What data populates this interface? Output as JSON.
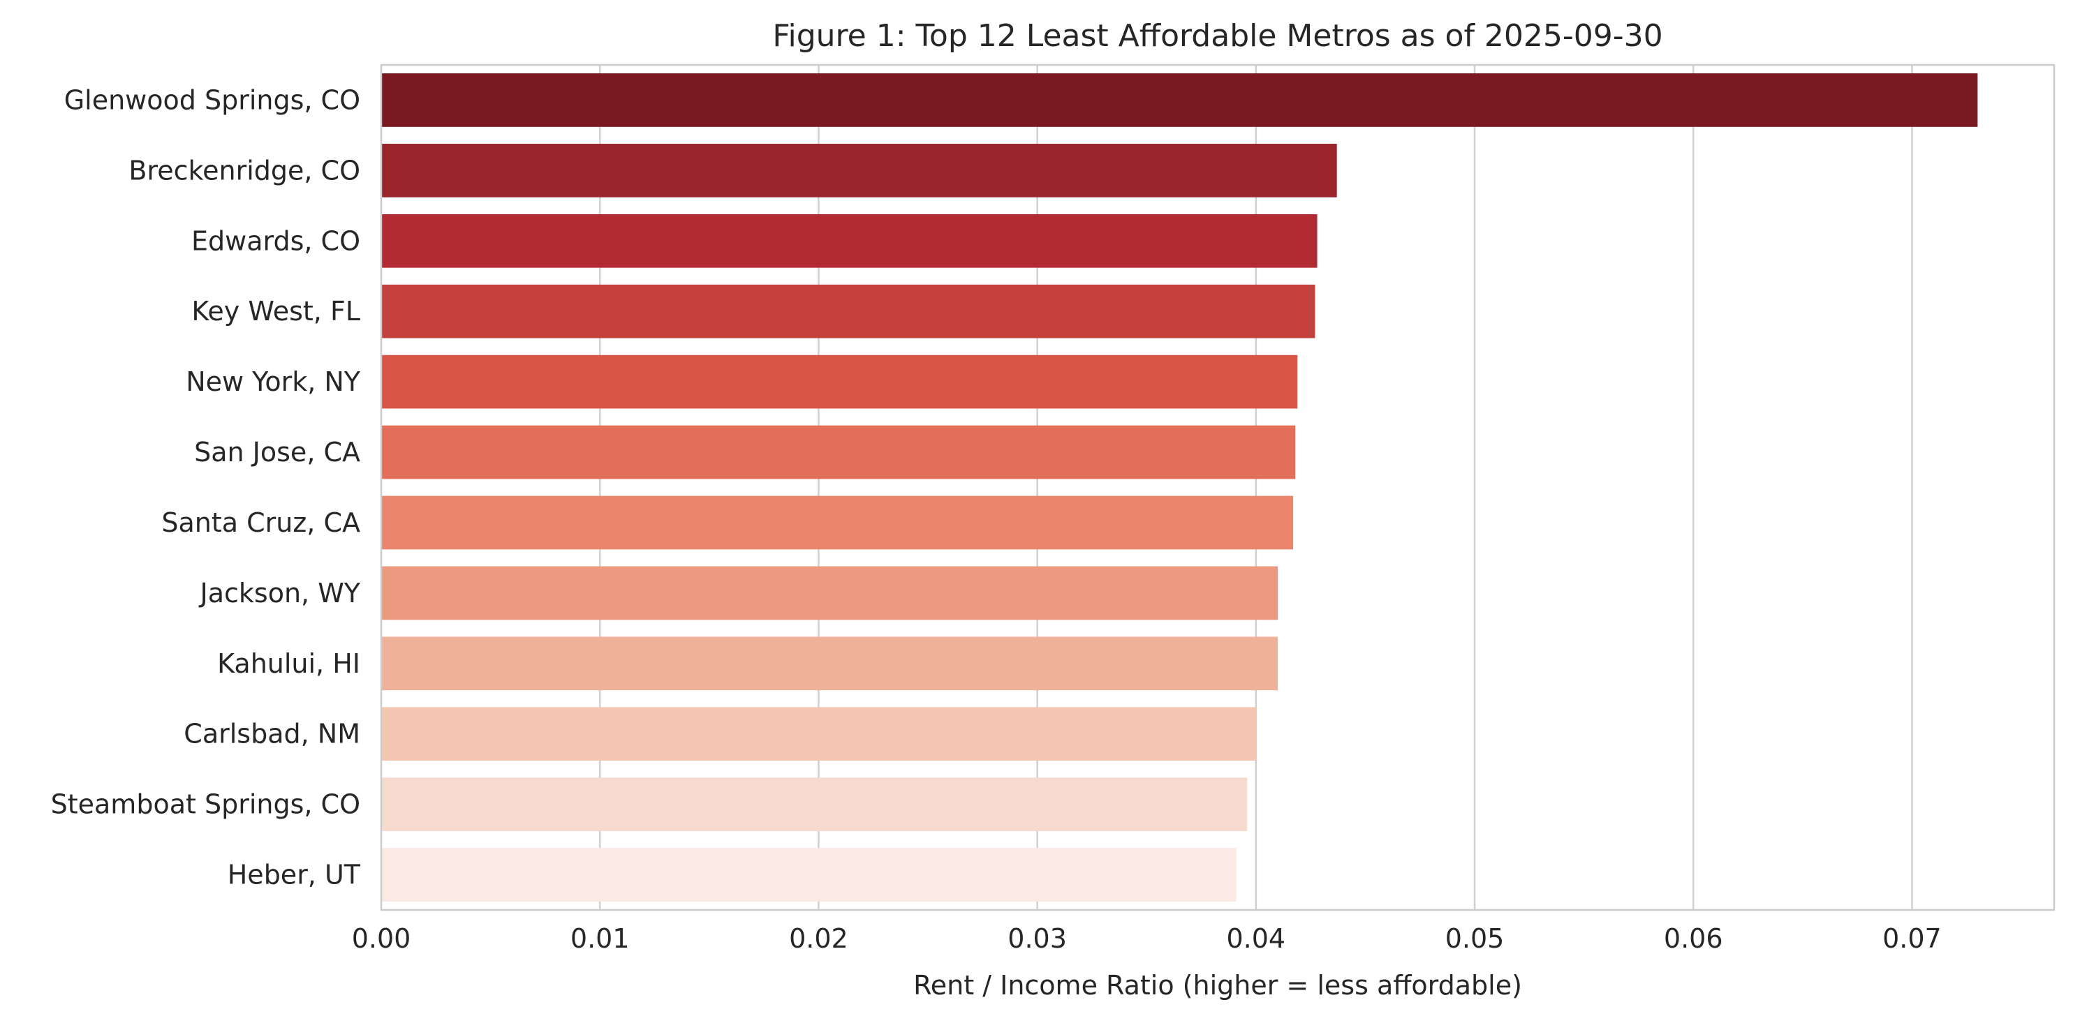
{
  "chart_data": {
    "type": "bar",
    "orientation": "horizontal",
    "title": "Figure 1: Top 12 Least Affordable Metros as of 2025-09-30",
    "xlabel": "Rent / Income Ratio (higher = less affordable)",
    "ylabel": "",
    "xlim": [
      0,
      0.0765
    ],
    "xticks": [
      "0.00",
      "0.01",
      "0.02",
      "0.03",
      "0.04",
      "0.05",
      "0.06",
      "0.07"
    ],
    "grid": "vertical",
    "categories": [
      "Glenwood Springs, CO",
      "Breckenridge, CO",
      "Edwards, CO",
      "Key West, FL",
      "New York, NY",
      "San Jose, CA",
      "Santa Cruz, CA",
      "Jackson, WY",
      "Kahului, HI",
      "Carlsbad, NM",
      "Steamboat Springs, CO",
      "Heber, UT"
    ],
    "values": [
      0.073,
      0.0437,
      0.0428,
      0.0427,
      0.0419,
      0.0418,
      0.0417,
      0.041,
      0.041,
      0.04,
      0.0396,
      0.0391
    ],
    "colors": [
      "#7a1921",
      "#9a242b",
      "#b22a32",
      "#c4403c",
      "#d95548",
      "#e36f5a",
      "#e9856d",
      "#eb9a80",
      "#efb199",
      "#f3c6b2",
      "#f6dace",
      "#fbe9e3"
    ]
  }
}
